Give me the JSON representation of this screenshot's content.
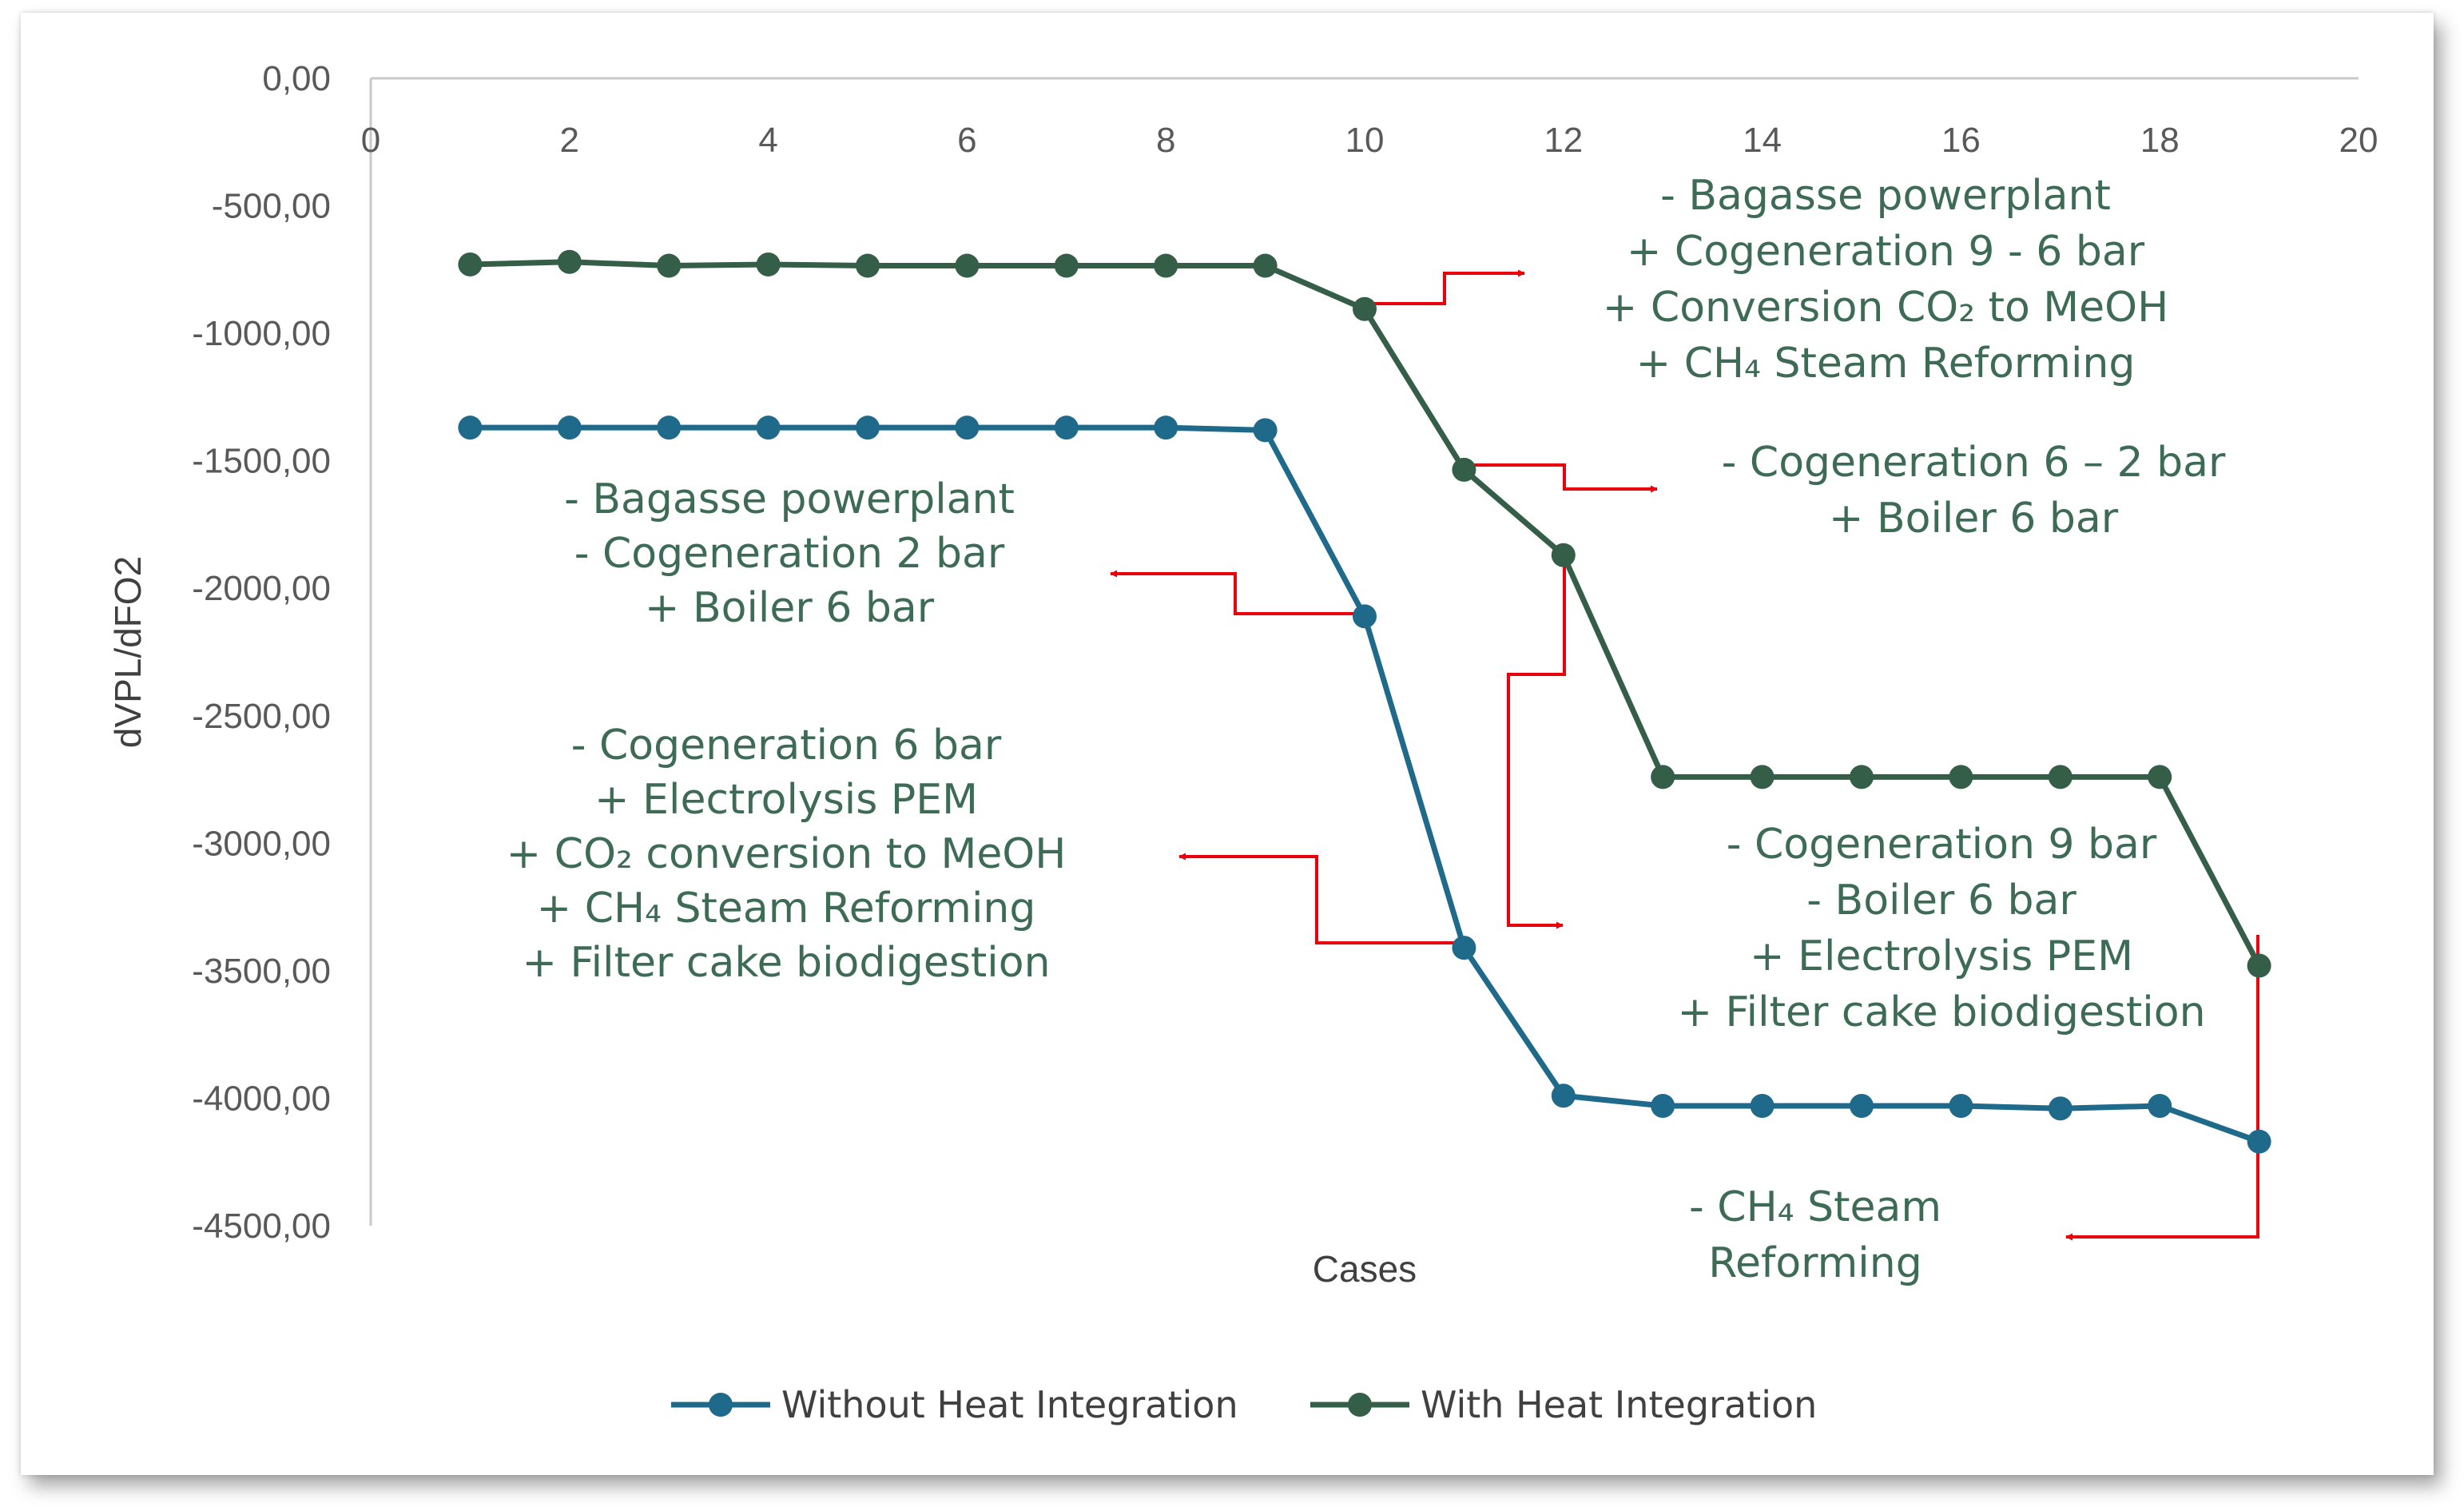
{
  "chart_data": {
    "type": "line",
    "title": "",
    "xlabel": "Cases",
    "ylabel": "dVPL/dFO2",
    "xlim": [
      0,
      20
    ],
    "ylim": [
      -4500,
      0
    ],
    "x_ticks": [
      "0",
      "2",
      "4",
      "6",
      "8",
      "10",
      "12",
      "14",
      "16",
      "18",
      "20"
    ],
    "y_ticks": [
      "0,00",
      "-500,00",
      "-1000,00",
      "-1500,00",
      "-2000,00",
      "-2500,00",
      "-3000,00",
      "-3500,00",
      "-4000,00",
      "-4500,00"
    ],
    "x": [
      1,
      2,
      3,
      4,
      5,
      6,
      7,
      8,
      9,
      10,
      11,
      12,
      13,
      14,
      15,
      16,
      17,
      18,
      19
    ],
    "series": [
      {
        "name": "Without Heat Integration",
        "color": "#1f6a8a",
        "values": [
          -1370,
          -1370,
          -1370,
          -1370,
          -1370,
          -1370,
          -1370,
          -1370,
          -1380,
          -2110,
          -3410,
          -3990,
          -4030,
          -4030,
          -4030,
          -4030,
          -4040,
          -4030,
          -4170
        ]
      },
      {
        "name": "With Heat Integration",
        "color": "#355e48",
        "values": [
          -730,
          -720,
          -735,
          -730,
          -735,
          -735,
          -735,
          -735,
          -735,
          -905,
          -1535,
          -1870,
          -2740,
          -2740,
          -2740,
          -2740,
          -2740,
          -2740,
          -3480
        ]
      }
    ],
    "annotations": [
      {
        "id": "a1",
        "lines": [
          "- Bagasse powerplant",
          "+ Cogeneration 9 - 6 bar",
          "+ Conversion CO₂ to MeOH",
          "+ CH₄ Steam Reforming"
        ]
      },
      {
        "id": "a2",
        "lines": [
          "- Cogeneration 6 – 2 bar",
          "+ Boiler 6 bar"
        ]
      },
      {
        "id": "a3",
        "lines": [
          "- Bagasse powerplant",
          "- Cogeneration 2 bar",
          "+ Boiler 6 bar"
        ]
      },
      {
        "id": "a4",
        "lines": [
          "- Cogeneration 6 bar",
          "+ Electrolysis PEM",
          "+ CO₂ conversion to MeOH",
          "+ CH₄ Steam Reforming",
          "+ Filter cake biodigestion"
        ]
      },
      {
        "id": "a5",
        "lines": [
          "-    Cogeneration 9 bar",
          "-    Boiler 6 bar",
          "+ Electrolysis PEM",
          "+ Filter cake biodigestion"
        ]
      },
      {
        "id": "a6",
        "lines": [
          "- CH₄ Steam",
          "Reforming"
        ]
      }
    ],
    "legend_position": "bottom",
    "grid": false
  }
}
